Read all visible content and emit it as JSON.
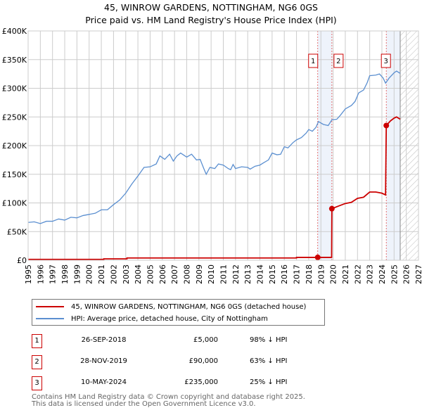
{
  "chart_data": {
    "type": "line",
    "title": "45, WINROW GARDENS, NOTTINGHAM, NG6 0GS",
    "subtitle": "Price paid vs. HM Land Registry's House Price Index (HPI)",
    "xlim": [
      1995,
      2027
    ],
    "ylim": [
      0,
      400000
    ],
    "yticks": [
      {
        "v": 0,
        "label": "£0"
      },
      {
        "v": 50000,
        "label": "£50K"
      },
      {
        "v": 100000,
        "label": "£100K"
      },
      {
        "v": 150000,
        "label": "£150K"
      },
      {
        "v": 200000,
        "label": "£200K"
      },
      {
        "v": 250000,
        "label": "£250K"
      },
      {
        "v": 300000,
        "label": "£300K"
      },
      {
        "v": 350000,
        "label": "£350K"
      },
      {
        "v": 400000,
        "label": "£400K"
      }
    ],
    "xticks": [
      "1995",
      "1996",
      "1997",
      "1998",
      "1999",
      "2000",
      "2001",
      "2002",
      "2003",
      "2004",
      "2005",
      "2006",
      "2007",
      "2008",
      "2009",
      "2010",
      "2011",
      "2012",
      "2013",
      "2014",
      "2015",
      "2016",
      "2017",
      "2018",
      "2019",
      "2020",
      "2021",
      "2022",
      "2023",
      "2024",
      "2025",
      "2026",
      "2027"
    ],
    "grid": true,
    "colors": {
      "price": "#cc0000",
      "hpi": "#5b8fd0",
      "shade": "#eef3fb"
    },
    "series": [
      {
        "name": "45, WINROW GARDENS, NOTTINGHAM, NG6 0GS (detached house)",
        "key": "price",
        "points": [
          [
            1995,
            1500
          ],
          [
            2001.2,
            1500
          ],
          [
            2001.2,
            2500
          ],
          [
            2003.1,
            2500
          ],
          [
            2003.1,
            4000
          ],
          [
            2017,
            4000
          ],
          [
            2017,
            5000
          ],
          [
            2018.74,
            5000
          ],
          [
            2019.88,
            5000
          ],
          [
            2019.9,
            90000
          ],
          [
            2020.5,
            95000
          ],
          [
            2021,
            99000
          ],
          [
            2021.5,
            101000
          ],
          [
            2022,
            108000
          ],
          [
            2022.5,
            110000
          ],
          [
            2023,
            119000
          ],
          [
            2023.5,
            119000
          ],
          [
            2024,
            117000
          ],
          [
            2024.3,
            114000
          ],
          [
            2024.36,
            235000
          ],
          [
            2024.7,
            243000
          ],
          [
            2025,
            248000
          ],
          [
            2025.2,
            250000
          ],
          [
            2025.5,
            246000
          ]
        ]
      },
      {
        "name": "HPI: Average price, detached house, City of Nottingham",
        "key": "hpi",
        "points": [
          [
            1995,
            66000
          ],
          [
            1995.5,
            67000
          ],
          [
            1996,
            64000
          ],
          [
            1996.5,
            68000
          ],
          [
            1997,
            68000
          ],
          [
            1997.5,
            72000
          ],
          [
            1998,
            70000
          ],
          [
            1998.5,
            75000
          ],
          [
            1999,
            74000
          ],
          [
            1999.5,
            78000
          ],
          [
            2000,
            80000
          ],
          [
            2000.5,
            82000
          ],
          [
            2001,
            88000
          ],
          [
            2001.5,
            88000
          ],
          [
            2002,
            97000
          ],
          [
            2002.5,
            105000
          ],
          [
            2003,
            117000
          ],
          [
            2003.5,
            133000
          ],
          [
            2004,
            147000
          ],
          [
            2004.5,
            162000
          ],
          [
            2005,
            163000
          ],
          [
            2005.5,
            168000
          ],
          [
            2005.8,
            182000
          ],
          [
            2006.2,
            176000
          ],
          [
            2006.6,
            185000
          ],
          [
            2006.9,
            173000
          ],
          [
            2007.2,
            182000
          ],
          [
            2007.5,
            187000
          ],
          [
            2008,
            180000
          ],
          [
            2008.4,
            185000
          ],
          [
            2008.8,
            175000
          ],
          [
            2009.1,
            176000
          ],
          [
            2009.4,
            160000
          ],
          [
            2009.6,
            150000
          ],
          [
            2009.9,
            162000
          ],
          [
            2010.3,
            160000
          ],
          [
            2010.6,
            168000
          ],
          [
            2011,
            166000
          ],
          [
            2011.4,
            160000
          ],
          [
            2011.6,
            158000
          ],
          [
            2011.8,
            167000
          ],
          [
            2012,
            160000
          ],
          [
            2012.5,
            163000
          ],
          [
            2013,
            162000
          ],
          [
            2013.2,
            159000
          ],
          [
            2013.6,
            164000
          ],
          [
            2014,
            166000
          ],
          [
            2014.3,
            170000
          ],
          [
            2014.7,
            175000
          ],
          [
            2015,
            187000
          ],
          [
            2015.4,
            184000
          ],
          [
            2015.7,
            185000
          ],
          [
            2016,
            198000
          ],
          [
            2016.3,
            196000
          ],
          [
            2016.7,
            205000
          ],
          [
            2017,
            210000
          ],
          [
            2017.4,
            214000
          ],
          [
            2017.8,
            222000
          ],
          [
            2018,
            228000
          ],
          [
            2018.3,
            225000
          ],
          [
            2018.6,
            232000
          ],
          [
            2018.8,
            242000
          ],
          [
            2019.2,
            237000
          ],
          [
            2019.6,
            235000
          ],
          [
            2019.9,
            245000
          ],
          [
            2020.3,
            246000
          ],
          [
            2020.6,
            253000
          ],
          [
            2021,
            264000
          ],
          [
            2021.5,
            270000
          ],
          [
            2021.8,
            277000
          ],
          [
            2022.1,
            292000
          ],
          [
            2022.5,
            297000
          ],
          [
            2022.8,
            310000
          ],
          [
            2023,
            322000
          ],
          [
            2023.5,
            323000
          ],
          [
            2023.8,
            325000
          ],
          [
            2024.1,
            318000
          ],
          [
            2024.3,
            309000
          ],
          [
            2024.6,
            318000
          ],
          [
            2025,
            327000
          ],
          [
            2025.2,
            330000
          ],
          [
            2025.5,
            326000
          ]
        ]
      }
    ],
    "shaded_ranges": [
      [
        2018.74,
        2019.9
      ],
      [
        2024.36,
        2025.5
      ]
    ],
    "hatched_range": [
      2025.5,
      2027
    ],
    "sales": [
      {
        "n": "1",
        "x": 2018.74,
        "y": 5000
      },
      {
        "n": "2",
        "x": 2019.9,
        "y": 90000
      },
      {
        "n": "3",
        "x": 2024.36,
        "y": 235000
      }
    ]
  },
  "legend": {
    "price": "45, WINROW GARDENS, NOTTINGHAM, NG6 0GS (detached house)",
    "hpi": "HPI: Average price, detached house, City of Nottingham"
  },
  "transactions": [
    {
      "n": "1",
      "date": "26-SEP-2018",
      "price": "£5,000",
      "hpi": "98% ↓ HPI"
    },
    {
      "n": "2",
      "date": "28-NOV-2019",
      "price": "£90,000",
      "hpi": "63% ↓ HPI"
    },
    {
      "n": "3",
      "date": "10-MAY-2024",
      "price": "£235,000",
      "hpi": "25% ↓ HPI"
    }
  ],
  "footer": {
    "line1": "Contains HM Land Registry data © Crown copyright and database right 2025.",
    "line2": "This data is licensed under the Open Government Licence v3.0."
  }
}
